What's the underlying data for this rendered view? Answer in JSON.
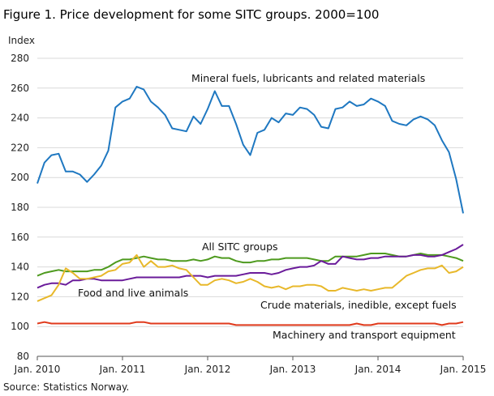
{
  "title": "Figure 1. Price development for some SITC groups. 2000=100",
  "source": "Source: Statistics Norway.",
  "chart_data": {
    "type": "line",
    "title": "Figure 1. Price development for some SITC groups. 2000=100",
    "ylabel": "Index",
    "xlabel": "",
    "ylim": [
      80,
      280
    ],
    "yticks": [
      80,
      100,
      120,
      140,
      160,
      180,
      200,
      220,
      240,
      260,
      280
    ],
    "xticks": [
      "Jan. 2010",
      "Jan. 2011",
      "Jan. 2012",
      "Jan. 2013",
      "Jan. 2014",
      "Jan. 2015"
    ],
    "x_start": "Jan. 2010",
    "x_end": "Jan. 2015",
    "grid": true,
    "legend": "inline labels",
    "series": [
      {
        "name": "Mineral fuels, lubricants and related materials",
        "color": "#1f78c1",
        "values": [
          196,
          210,
          215,
          216,
          204,
          204,
          202,
          197,
          202,
          208,
          218,
          247,
          251,
          253,
          261,
          259,
          251,
          247,
          242,
          233,
          232,
          231,
          241,
          236,
          246,
          258,
          248,
          248,
          236,
          222,
          215,
          230,
          232,
          240,
          237,
          243,
          242,
          247,
          246,
          242,
          234,
          233,
          246,
          247,
          251,
          248,
          249,
          253,
          251,
          248,
          238,
          236,
          235,
          239,
          241,
          239,
          235,
          225,
          217,
          199,
          176
        ]
      },
      {
        "name": "All SITC groups",
        "color": "#4e9a1e",
        "values": [
          134,
          136,
          137,
          138,
          137,
          137,
          137,
          137,
          138,
          138,
          140,
          143,
          145,
          145,
          146,
          147,
          146,
          145,
          145,
          144,
          144,
          144,
          145,
          144,
          145,
          147,
          146,
          146,
          144,
          143,
          143,
          144,
          144,
          145,
          145,
          146,
          146,
          146,
          146,
          145,
          144,
          144,
          147,
          147,
          147,
          147,
          148,
          149,
          149,
          149,
          148,
          147,
          147,
          148,
          149,
          148,
          148,
          148,
          147,
          146,
          144
        ]
      },
      {
        "name": "Food and live animals",
        "color": "#6a1b9a",
        "values": [
          126,
          128,
          129,
          129,
          128,
          131,
          131,
          132,
          132,
          131,
          131,
          131,
          131,
          132,
          133,
          133,
          133,
          133,
          133,
          133,
          133,
          134,
          134,
          134,
          133,
          134,
          134,
          134,
          134,
          135,
          136,
          136,
          136,
          135,
          136,
          138,
          139,
          140,
          140,
          141,
          144,
          142,
          142,
          147,
          146,
          145,
          145,
          146,
          146,
          147,
          147,
          147,
          147,
          148,
          148,
          147,
          147,
          148,
          150,
          152,
          155
        ]
      },
      {
        "name": "Crude materials, inedible, except fuels",
        "color": "#e8b82a",
        "values": [
          117,
          119,
          121,
          128,
          139,
          136,
          132,
          132,
          133,
          134,
          137,
          138,
          142,
          143,
          148,
          140,
          144,
          140,
          140,
          141,
          139,
          138,
          133,
          128,
          128,
          131,
          132,
          131,
          129,
          130,
          132,
          130,
          127,
          126,
          127,
          125,
          127,
          127,
          128,
          128,
          127,
          124,
          124,
          126,
          125,
          124,
          125,
          124,
          125,
          126,
          126,
          130,
          134,
          136,
          138,
          139,
          139,
          141,
          136,
          137,
          140
        ]
      },
      {
        "name": "Machinery and transport equipment",
        "color": "#e03a1c",
        "values": [
          102,
          103,
          102,
          102,
          102,
          102,
          102,
          102,
          102,
          102,
          102,
          102,
          102,
          102,
          103,
          103,
          102,
          102,
          102,
          102,
          102,
          102,
          102,
          102,
          102,
          102,
          102,
          102,
          101,
          101,
          101,
          101,
          101,
          101,
          101,
          101,
          101,
          101,
          101,
          101,
          101,
          101,
          101,
          101,
          101,
          102,
          101,
          101,
          102,
          102,
          102,
          102,
          102,
          102,
          102,
          102,
          102,
          101,
          102,
          102,
          103
        ]
      }
    ],
    "annotations": [
      "Mineral fuels, lubricants and related materials",
      "All SITC groups",
      "Food and live animals",
      "Crude materials, inedible, except fuels",
      "Machinery and transport equipment"
    ]
  }
}
